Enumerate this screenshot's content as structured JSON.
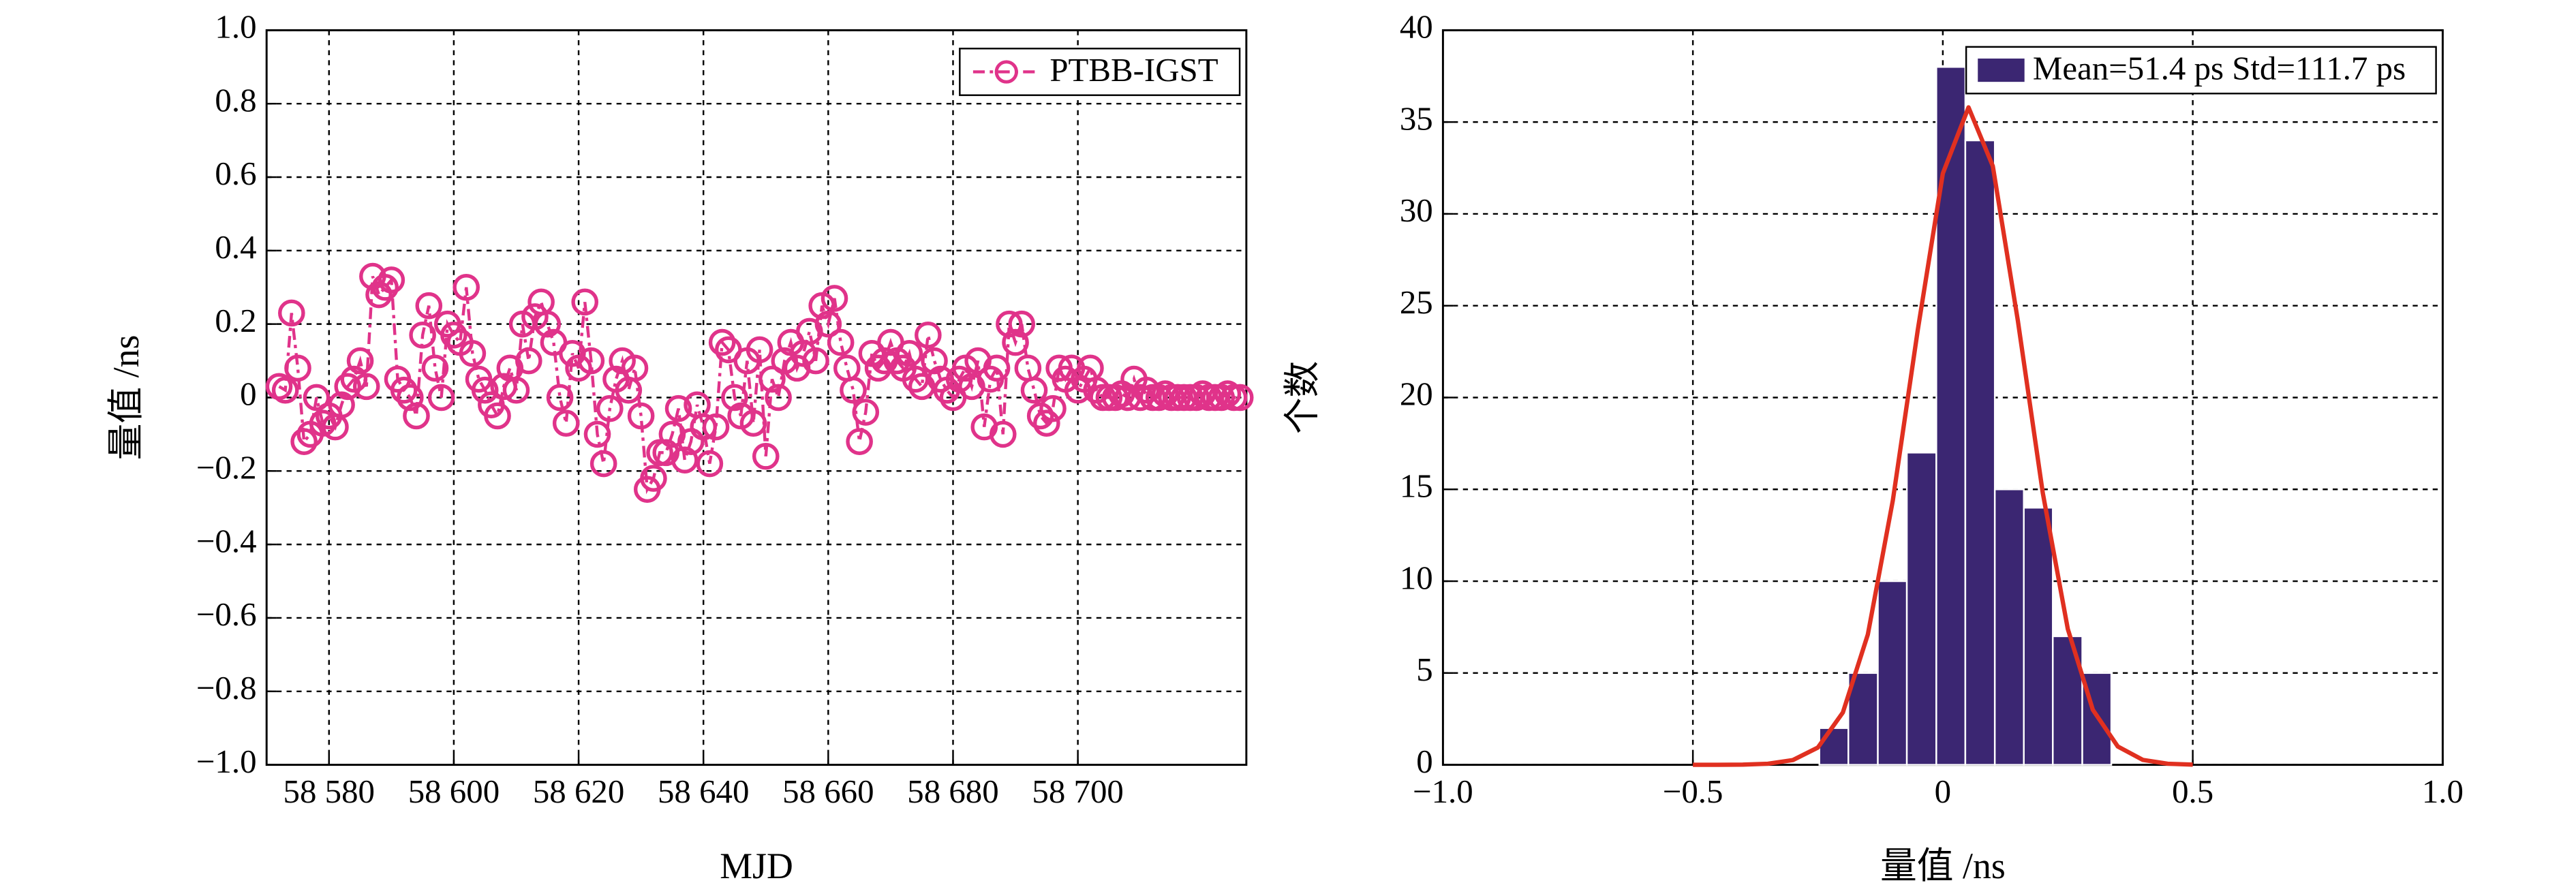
{
  "chart_data": [
    {
      "type": "line",
      "xlabel": "MJD",
      "ylabel": "量值 /ns",
      "xlim": [
        58570,
        58727
      ],
      "ylim": [
        -1,
        1
      ],
      "xticks": [
        {
          "value": 58580,
          "label": "58 580"
        },
        {
          "value": 58600,
          "label": "58 600"
        },
        {
          "value": 58620,
          "label": "58 620"
        },
        {
          "value": 58640,
          "label": "58 640"
        },
        {
          "value": 58660,
          "label": "58 660"
        },
        {
          "value": 58680,
          "label": "58 680"
        },
        {
          "value": 58700,
          "label": "58 700"
        }
      ],
      "yticks": [
        {
          "value": -1,
          "label": "−1.0"
        },
        {
          "value": -0.8,
          "label": "−0.8"
        },
        {
          "value": -0.6,
          "label": "−0.6"
        },
        {
          "value": -0.4,
          "label": "−0.4"
        },
        {
          "value": -0.2,
          "label": "−0.2"
        },
        0,
        0.2,
        0.4,
        0.6,
        0.8,
        {
          "value": 1,
          "label": "1.0"
        }
      ],
      "grid": true,
      "legend": "upper right",
      "x": [
        58572,
        58573,
        58574,
        58575,
        58576,
        58577,
        58578,
        58579,
        58580,
        58581,
        58582,
        58583,
        58584,
        58585,
        58586,
        58587,
        58588,
        58589,
        58590,
        58591,
        58592,
        58593,
        58594,
        58595,
        58596,
        58597,
        58598,
        58599,
        58600,
        58601,
        58602,
        58603,
        58604,
        58605,
        58606,
        58607,
        58608,
        58609,
        58610,
        58611,
        58612,
        58613,
        58614,
        58615,
        58616,
        58617,
        58618,
        58619,
        58620,
        58621,
        58622,
        58623,
        58624,
        58625,
        58626,
        58627,
        58628,
        58629,
        58630,
        58631,
        58632,
        58633,
        58634,
        58635,
        58636,
        58637,
        58638,
        58639,
        58640,
        58641,
        58642,
        58643,
        58644,
        58645,
        58646,
        58647,
        58648,
        58649,
        58650,
        58651,
        58652,
        58653,
        58654,
        58655,
        58656,
        58657,
        58658,
        58659,
        58660,
        58661,
        58662,
        58663,
        58664,
        58665,
        58666,
        58667,
        58668,
        58669,
        58670,
        58671,
        58672,
        58673,
        58674,
        58675,
        58676,
        58677,
        58678,
        58679,
        58680,
        58681,
        58682,
        58683,
        58684,
        58685,
        58686,
        58687,
        58688,
        58689,
        58690,
        58691,
        58692,
        58693,
        58694,
        58695,
        58696,
        58697,
        58698,
        58699,
        58700,
        58701,
        58702,
        58703,
        58704,
        58705,
        58706,
        58707,
        58708,
        58709,
        58710,
        58711,
        58712,
        58713,
        58714,
        58715,
        58716,
        58717,
        58718,
        58719,
        58720,
        58721,
        58722,
        58723,
        58724,
        58725,
        58726
      ],
      "series": [
        {
          "name": "PTBB-IGST",
          "color": "#e0338a",
          "values": [
            0.03,
            0.02,
            0.23,
            0.08,
            -0.12,
            -0.1,
            0.0,
            -0.07,
            -0.05,
            -0.08,
            -0.02,
            0.03,
            0.05,
            0.1,
            0.03,
            0.33,
            0.28,
            0.3,
            0.32,
            0.05,
            0.02,
            0.0,
            -0.05,
            0.17,
            0.25,
            0.08,
            0.0,
            0.2,
            0.17,
            0.15,
            0.3,
            0.12,
            0.05,
            0.02,
            -0.02,
            -0.05,
            0.03,
            0.08,
            0.02,
            0.2,
            0.1,
            0.22,
            0.26,
            0.2,
            0.15,
            0.0,
            -0.07,
            0.12,
            0.08,
            0.26,
            0.1,
            -0.1,
            -0.18,
            -0.03,
            0.05,
            0.1,
            0.02,
            0.08,
            -0.05,
            -0.25,
            -0.22,
            -0.15,
            -0.15,
            -0.1,
            -0.03,
            -0.17,
            -0.12,
            -0.02,
            -0.08,
            -0.18,
            -0.08,
            0.15,
            0.13,
            0.0,
            -0.05,
            0.1,
            -0.07,
            0.13,
            -0.16,
            0.05,
            0.0,
            0.1,
            0.15,
            0.08,
            0.12,
            0.18,
            0.1,
            0.25,
            0.2,
            0.27,
            0.15,
            0.08,
            0.02,
            -0.12,
            -0.04,
            0.12,
            0.08,
            0.1,
            0.15,
            0.1,
            0.08,
            0.12,
            0.05,
            0.03,
            0.17,
            0.1,
            0.05,
            0.02,
            0.0,
            0.05,
            0.08,
            0.03,
            0.1,
            -0.08,
            0.05,
            0.08,
            -0.1,
            0.2,
            0.15,
            0.2,
            0.08,
            0.02,
            -0.05,
            -0.07,
            -0.03,
            0.08,
            0.05,
            0.08,
            0.02,
            0.05,
            0.08,
            0.02,
            0.0,
            0.0,
            0.0,
            0.01,
            0.0,
            0.05,
            0.0,
            0.02,
            0.0,
            0.0,
            0.01,
            0.0,
            0.0,
            0.0,
            0.0,
            0.0,
            0.01,
            0.0,
            0.0,
            0.0,
            0.01,
            0.0,
            0.0
          ]
        }
      ]
    },
    {
      "type": "histogram",
      "xlabel": "量值 /ns",
      "ylabel": "个数",
      "xlim": [
        -1,
        1
      ],
      "ylim": [
        0,
        40
      ],
      "xticks": [
        {
          "value": -1,
          "label": "−1.0"
        },
        {
          "value": -0.5,
          "label": "−0.5"
        },
        0,
        0.5,
        {
          "value": 1,
          "label": "1.0"
        }
      ],
      "yticks": [
        0,
        5,
        10,
        15,
        20,
        25,
        30,
        35,
        40
      ],
      "grid": true,
      "legend": "upper right",
      "bins": [
        -0.247,
        -0.189,
        -0.13,
        -0.072,
        -0.013,
        0.045,
        0.104,
        0.162,
        0.22,
        0.279,
        0.337
      ],
      "series": [
        {
          "name": "Mean=51.4 ps Std=111.7 ps",
          "color": "#3b2672",
          "values": [
            2,
            5,
            10,
            17,
            38,
            34,
            15,
            14,
            7,
            5
          ]
        }
      ],
      "curve": {
        "color": "#e03020",
        "x": [
          -0.5,
          -0.45,
          -0.4,
          -0.35,
          -0.3,
          -0.25,
          -0.2,
          -0.15,
          -0.1,
          -0.05,
          0,
          0.0514,
          0.1,
          0.15,
          0.2,
          0.25,
          0.3,
          0.35,
          0.4,
          0.45,
          0.5
        ],
        "y": [
          0,
          0,
          0.01,
          0.06,
          0.26,
          0.94,
          2.85,
          7.1,
          14.4,
          23.7,
          32.2,
          35.8,
          32.6,
          24.2,
          14.8,
          7.4,
          3.0,
          1.0,
          0.27,
          0.06,
          0.01
        ]
      }
    }
  ]
}
